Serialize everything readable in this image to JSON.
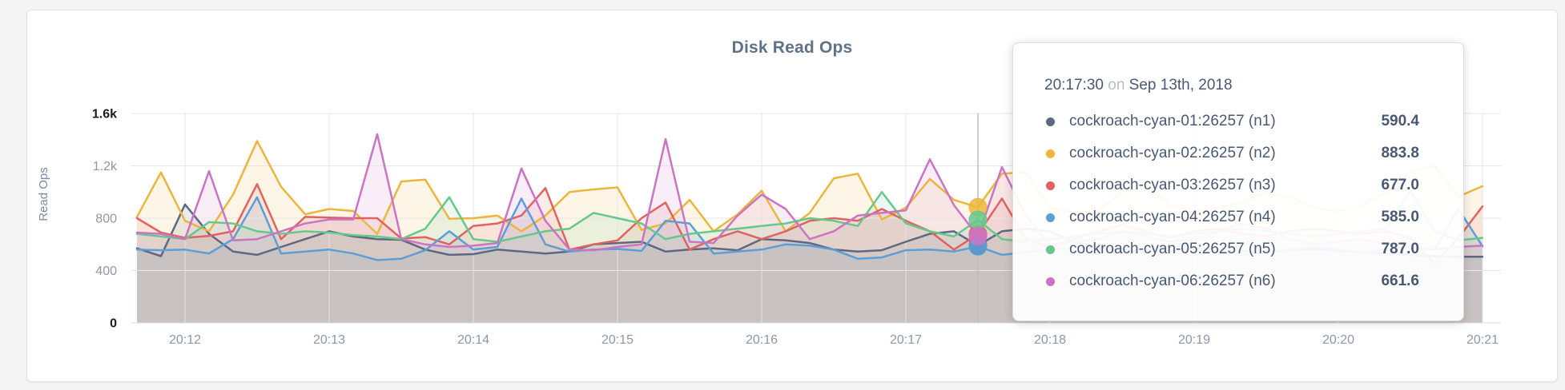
{
  "chart": {
    "title": "Disk Read Ops",
    "ylabel": "Read Ops"
  },
  "tooltip": {
    "time": "20:17:30",
    "on_word": "on",
    "date": "Sep 13th, 2018",
    "rows": [
      {
        "id": "n1",
        "label": "cockroach-cyan-01:26257 (n1)",
        "value": "590.4",
        "color": "#5e6880"
      },
      {
        "id": "n2",
        "label": "cockroach-cyan-02:26257 (n2)",
        "value": "883.8",
        "color": "#ecb63d"
      },
      {
        "id": "n3",
        "label": "cockroach-cyan-03:26257 (n3)",
        "value": "677.0",
        "color": "#e06361"
      },
      {
        "id": "n4",
        "label": "cockroach-cyan-04:26257 (n4)",
        "value": "585.0",
        "color": "#5b9fd6"
      },
      {
        "id": "n5",
        "label": "cockroach-cyan-05:26257 (n5)",
        "value": "787.0",
        "color": "#65c88c"
      },
      {
        "id": "n6",
        "label": "cockroach-cyan-06:26257 (n6)",
        "value": "661.6",
        "color": "#cb74c5"
      }
    ]
  },
  "chart_data": {
    "type": "area",
    "title": "Disk Read Ops",
    "xlabel": "",
    "ylabel": "Read Ops",
    "grid": true,
    "ylim": [
      0,
      1600
    ],
    "x_start": "20:11:40",
    "x_interval_seconds": 10,
    "x_tick_labels": [
      "20:12",
      "20:13",
      "20:14",
      "20:15",
      "20:16",
      "20:17",
      "20:18",
      "20:19",
      "20:20",
      "20:21"
    ],
    "x_tick_indices": [
      2,
      8,
      14,
      20,
      26,
      32,
      38,
      44,
      50,
      56
    ],
    "y_ticks": [
      {
        "label": "0",
        "value": 0,
        "strong": true
      },
      {
        "label": "400",
        "value": 400,
        "strong": false
      },
      {
        "label": "800",
        "value": 800,
        "strong": false
      },
      {
        "label": "1.2k",
        "value": 1200,
        "strong": false
      },
      {
        "label": "1.6k",
        "value": 1600,
        "strong": true
      }
    ],
    "hover": {
      "index": 35,
      "time": "20:17:30",
      "date": "Sep 13th, 2018"
    },
    "series": [
      {
        "name": "cockroach-cyan-01:26257 (n1)",
        "short": "n1",
        "color": "#5e6880",
        "values": [
          570,
          510,
          905,
          680,
          545,
          520,
          580,
          640,
          700,
          660,
          640,
          635,
          560,
          520,
          525,
          560,
          545,
          530,
          545,
          600,
          610,
          620,
          545,
          560,
          570,
          555,
          640,
          630,
          610,
          560,
          545,
          555,
          620,
          680,
          700,
          590.4,
          700,
          720,
          700,
          620,
          580,
          560,
          545,
          555,
          570,
          560,
          550,
          540,
          555,
          565,
          550,
          540,
          530,
          520,
          510,
          505,
          505
        ]
      },
      {
        "name": "cockroach-cyan-02:26257 (n2)",
        "short": "n2",
        "color": "#ecb63d",
        "values": [
          810,
          1150,
          780,
          700,
          980,
          1390,
          1040,
          830,
          870,
          855,
          680,
          1080,
          1095,
          795,
          800,
          820,
          700,
          820,
          1000,
          1020,
          1035,
          710,
          760,
          940,
          700,
          830,
          1010,
          700,
          840,
          1105,
          1140,
          790,
          880,
          1100,
          940,
          883.8,
          1140,
          1150,
          880,
          840,
          860,
          1000,
          1050,
          900,
          850,
          880,
          920,
          1000,
          960,
          880,
          850,
          900,
          1000,
          1150,
          1200,
          965,
          1045
        ]
      },
      {
        "name": "cockroach-cyan-03:26257 (n3)",
        "short": "n3",
        "color": "#e06361",
        "values": [
          800,
          690,
          650,
          665,
          700,
          1060,
          640,
          810,
          805,
          800,
          800,
          645,
          655,
          600,
          740,
          760,
          820,
          1030,
          560,
          600,
          630,
          800,
          920,
          560,
          640,
          700,
          640,
          700,
          780,
          800,
          780,
          870,
          780,
          700,
          560,
          677.0,
          950,
          640,
          580,
          640,
          700,
          750,
          700,
          650,
          700,
          720,
          680,
          660,
          700,
          720,
          700,
          680,
          700,
          650,
          450,
          650,
          890
        ]
      },
      {
        "name": "cockroach-cyan-04:26257 (n4)",
        "short": "n4",
        "color": "#5b9fd6",
        "values": [
          560,
          555,
          560,
          530,
          640,
          960,
          530,
          545,
          560,
          530,
          480,
          490,
          555,
          700,
          560,
          580,
          950,
          600,
          545,
          560,
          565,
          550,
          780,
          760,
          530,
          545,
          560,
          600,
          590,
          560,
          490,
          500,
          555,
          560,
          545,
          585.0,
          520,
          540,
          560,
          580,
          560,
          540,
          560,
          580,
          560,
          540,
          520,
          540,
          560,
          580,
          560,
          540,
          560,
          580,
          560,
          870,
          585
        ]
      },
      {
        "name": "cockroach-cyan-05:26257 (n5)",
        "short": "n5",
        "color": "#65c88c",
        "values": [
          680,
          660,
          640,
          770,
          760,
          700,
          680,
          700,
          690,
          670,
          660,
          640,
          720,
          960,
          640,
          620,
          660,
          700,
          720,
          840,
          800,
          760,
          640,
          680,
          700,
          720,
          740,
          760,
          800,
          780,
          740,
          1000,
          760,
          700,
          660,
          787.0,
          640,
          620,
          640,
          660,
          680,
          700,
          680,
          660,
          680,
          700,
          720,
          700,
          680,
          660,
          680,
          700,
          720,
          1010,
          700,
          630,
          650
        ]
      },
      {
        "name": "cockroach-cyan-06:26257 (n6)",
        "short": "n6",
        "color": "#cb74c5",
        "values": [
          690,
          680,
          640,
          1160,
          630,
          640,
          700,
          760,
          790,
          790,
          1442,
          640,
          600,
          580,
          590,
          610,
          1180,
          780,
          560,
          555,
          580,
          600,
          1404,
          620,
          610,
          820,
          980,
          870,
          640,
          700,
          820,
          840,
          860,
          1250,
          900,
          661.6,
          1190,
          820,
          600,
          620,
          640,
          700,
          660,
          620,
          640,
          700,
          760,
          720,
          640,
          600,
          620,
          640,
          600,
          580,
          560,
          580,
          590
        ]
      }
    ]
  }
}
